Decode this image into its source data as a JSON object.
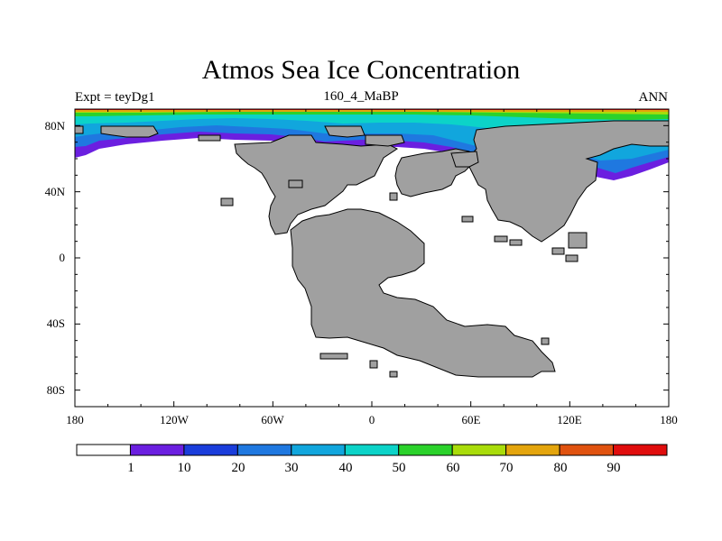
{
  "title": "Atmos Sea Ice Concentration",
  "subtitle_left": "Expt = teyDg1",
  "subtitle_center": "160_4_MaBP",
  "subtitle_right": "ANN",
  "lat_ticks": [
    "80N",
    "40N",
    "0",
    "40S",
    "80S"
  ],
  "lon_ticks": [
    "180",
    "120W",
    "60W",
    "0",
    "60E",
    "120E",
    "180"
  ],
  "colorbar": {
    "colors": [
      "#ffffff",
      "#6b1fe0",
      "#1a3ddb",
      "#1f78e0",
      "#11a6dd",
      "#0cd3c8",
      "#2bd22b",
      "#a9dc0a",
      "#e4a50d",
      "#e0520f",
      "#e00d0d"
    ],
    "labels": [
      "1",
      "10",
      "20",
      "30",
      "40",
      "50",
      "60",
      "70",
      "80",
      "90"
    ]
  },
  "colors": {
    "land": "#a0a0a0",
    "ocean": "#ffffff",
    "outline": "#000000"
  }
}
